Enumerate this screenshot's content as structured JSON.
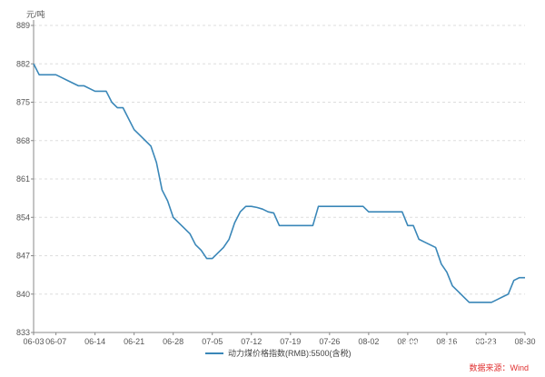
{
  "chart_data": {
    "type": "line",
    "unit_label": "元/吨",
    "x_ticks": [
      "06-03",
      "06-07",
      "06-14",
      "06-21",
      "06-28",
      "07-05",
      "07-12",
      "07-19",
      "07-26",
      "08-02",
      "08-09",
      "08-16",
      "08-23",
      "08-30"
    ],
    "y_ticks": [
      833,
      840,
      847,
      854,
      861,
      868,
      875,
      882,
      889
    ],
    "ylim": [
      833,
      889
    ],
    "grid": "horizontal-dashed",
    "legend_position": "bottom",
    "series": [
      {
        "name": "动力煤价格指数(RMB):5500(含税)",
        "color": "#3a87b8",
        "x": [
          "06-03",
          "06-04",
          "06-07",
          "06-08",
          "06-09",
          "06-10",
          "06-11",
          "06-12",
          "06-14",
          "06-15",
          "06-16",
          "06-17",
          "06-18",
          "06-19",
          "06-21",
          "06-22",
          "06-23",
          "06-24",
          "06-25",
          "06-26",
          "06-27",
          "06-28",
          "06-29",
          "06-30",
          "07-01",
          "07-02",
          "07-03",
          "07-04",
          "07-05",
          "07-06",
          "07-07",
          "07-08",
          "07-09",
          "07-10",
          "07-11",
          "07-12",
          "07-13",
          "07-14",
          "07-15",
          "07-16",
          "07-17",
          "07-18",
          "07-19",
          "07-20",
          "07-21",
          "07-22",
          "07-23",
          "07-24",
          "07-25",
          "07-26",
          "07-27",
          "07-28",
          "07-29",
          "07-30",
          "07-31",
          "08-01",
          "08-02",
          "08-03",
          "08-04",
          "08-05",
          "08-06",
          "08-07",
          "08-08",
          "08-09",
          "08-10",
          "08-11",
          "08-12",
          "08-13",
          "08-14",
          "08-15",
          "08-16",
          "08-17",
          "08-18",
          "08-19",
          "08-20",
          "08-21",
          "08-22",
          "08-23",
          "08-24",
          "08-25",
          "08-26",
          "08-27",
          "08-28",
          "08-29",
          "08-30"
        ],
        "values": [
          882,
          880,
          880,
          879.5,
          879,
          878.5,
          878,
          878,
          877,
          877,
          877,
          875,
          874,
          874,
          870,
          869,
          868,
          867,
          864,
          859,
          857,
          854,
          853,
          852,
          851,
          849,
          848,
          846.5,
          846.5,
          847.5,
          848.5,
          850,
          853,
          855,
          856,
          856,
          855.8,
          855.5,
          855,
          854.8,
          852.5,
          852.5,
          852.5,
          852.5,
          852.5,
          852.5,
          852.5,
          856,
          856,
          856,
          856,
          856,
          856,
          856,
          856,
          856,
          855,
          855,
          855,
          855,
          855,
          855,
          855,
          852.5,
          852.5,
          850,
          849.5,
          849,
          848.5,
          845.5,
          844,
          841.5,
          840.5,
          839.5,
          838.5,
          838.5,
          838.5,
          838.5,
          838.5,
          839,
          839.5,
          840,
          842.5,
          843,
          843
        ]
      }
    ],
    "source": "数据来源：Wind",
    "watermark": "知乎 @疯狂大原人"
  }
}
